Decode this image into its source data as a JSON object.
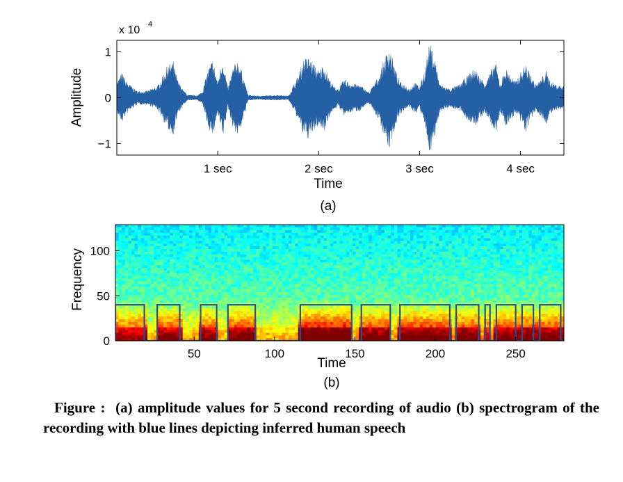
{
  "chart_data": [
    {
      "type": "line",
      "panel_label": "(a)",
      "xlabel": "Time",
      "ylabel": "Amplitude",
      "y_multiplier_label": "x 10",
      "y_multiplier_exp": "4",
      "xlim": [
        0,
        4.43
      ],
      "ylim": [
        -1.25,
        1.25
      ],
      "x_ticks": [
        {
          "value": 1,
          "label": "1 sec"
        },
        {
          "value": 2,
          "label": "2 sec"
        },
        {
          "value": 3,
          "label": "3 sec"
        },
        {
          "value": 4,
          "label": "4 sec"
        }
      ],
      "y_ticks": [
        {
          "value": 1,
          "label": "1"
        },
        {
          "value": 0,
          "label": "0"
        },
        {
          "value": -1,
          "label": "−1"
        }
      ],
      "grid": false,
      "series": [
        {
          "color": "#2660a4",
          "envelope_time_sec": [
            0,
            0.05,
            0.1,
            0.2,
            0.3,
            0.4,
            0.45,
            0.5,
            0.56,
            0.6,
            0.65,
            0.7,
            0.8,
            0.85,
            0.9,
            0.95,
            1.0,
            1.05,
            1.1,
            1.15,
            1.2,
            1.25,
            1.3,
            1.4,
            1.5,
            1.6,
            1.7,
            1.8,
            1.85,
            1.9,
            2.0,
            2.05,
            2.1,
            2.15,
            2.2,
            2.25,
            2.3,
            2.35,
            2.4,
            2.5,
            2.6,
            2.65,
            2.7,
            2.75,
            2.8,
            2.85,
            2.9,
            2.95,
            3.0,
            3.05,
            3.1,
            3.15,
            3.2,
            3.25,
            3.3,
            3.4,
            3.5,
            3.55,
            3.6,
            3.65,
            3.7,
            3.75,
            3.8,
            3.85,
            3.9,
            3.95,
            4.0,
            4.05,
            4.1,
            4.15,
            4.2,
            4.25,
            4.3,
            4.35,
            4.43
          ],
          "envelope_amplitude_x1e4": [
            0.35,
            0.55,
            0.35,
            0.15,
            0.15,
            0.25,
            0.45,
            0.7,
            0.8,
            0.4,
            0.2,
            0.06,
            0.05,
            0.15,
            0.6,
            0.85,
            0.35,
            0.9,
            0.2,
            0.65,
            0.85,
            0.5,
            0.06,
            0.04,
            0.05,
            0.06,
            0.04,
            0.5,
            0.85,
            0.9,
            0.6,
            0.75,
            0.45,
            0.25,
            0.2,
            0.4,
            0.35,
            0.3,
            0.3,
            0.12,
            0.5,
            0.85,
            1.15,
            0.7,
            0.35,
            0.3,
            0.2,
            0.35,
            0.25,
            0.6,
            1.2,
            0.9,
            0.3,
            0.25,
            0.2,
            0.3,
            0.55,
            0.65,
            0.45,
            0.35,
            0.55,
            0.8,
            0.3,
            0.65,
            0.5,
            0.35,
            0.55,
            0.75,
            0.5,
            0.3,
            0.4,
            0.6,
            0.35,
            0.3,
            0.25
          ]
        }
      ]
    },
    {
      "type": "heatmap",
      "panel_label": "(b)",
      "xlabel": "Time",
      "ylabel": "Frequency",
      "xlim": [
        1,
        280
      ],
      "ylim": [
        0,
        129
      ],
      "x_ticks": [
        {
          "value": 50,
          "label": "50"
        },
        {
          "value": 100,
          "label": "100"
        },
        {
          "value": 150,
          "label": "150"
        },
        {
          "value": 200,
          "label": "200"
        },
        {
          "value": 250,
          "label": "250"
        }
      ],
      "y_ticks": [
        {
          "value": 100,
          "label": "100"
        },
        {
          "value": 50,
          "label": "50"
        },
        {
          "value": 0,
          "label": "0"
        }
      ],
      "colormap": "jet",
      "speech_intensity_profile": [
        {
          "start": 1,
          "end": 20,
          "level": 0.75
        },
        {
          "start": 20,
          "end": 26,
          "level": 0.3
        },
        {
          "start": 26,
          "end": 42,
          "level": 0.8
        },
        {
          "start": 42,
          "end": 52,
          "level": 0.3
        },
        {
          "start": 52,
          "end": 64,
          "level": 0.8
        },
        {
          "start": 64,
          "end": 70,
          "level": 0.3
        },
        {
          "start": 70,
          "end": 88,
          "level": 0.85
        },
        {
          "start": 88,
          "end": 115,
          "level": 0.3
        },
        {
          "start": 115,
          "end": 148,
          "level": 1.0
        },
        {
          "start": 148,
          "end": 152,
          "level": 0.35
        },
        {
          "start": 152,
          "end": 173,
          "level": 0.85
        },
        {
          "start": 173,
          "end": 176,
          "level": 0.35
        },
        {
          "start": 176,
          "end": 210,
          "level": 0.9
        },
        {
          "start": 210,
          "end": 212,
          "level": 0.35
        },
        {
          "start": 212,
          "end": 228,
          "level": 0.85
        },
        {
          "start": 228,
          "end": 231,
          "level": 0.4
        },
        {
          "start": 231,
          "end": 234,
          "level": 0.7
        },
        {
          "start": 234,
          "end": 237,
          "level": 0.4
        },
        {
          "start": 237,
          "end": 280,
          "level": 0.85
        }
      ],
      "overlay": {
        "name": "inferred human speech",
        "color": "#2a4f8f",
        "low_value": 0,
        "high_value": 40,
        "segments": [
          [
            1,
            19
          ],
          [
            27,
            41
          ],
          [
            54,
            64
          ],
          [
            71,
            88
          ],
          [
            116,
            148
          ],
          [
            154,
            172
          ],
          [
            178,
            209
          ],
          [
            213,
            227
          ],
          [
            231,
            234
          ],
          [
            238,
            250
          ],
          [
            254,
            261
          ],
          [
            265,
            278
          ]
        ]
      }
    }
  ],
  "caption": {
    "prefix": "Figure :",
    "text": "(a) amplitude values for 5 second recording of audio (b) spectrogram of the recording with blue lines depicting inferred human speech"
  }
}
